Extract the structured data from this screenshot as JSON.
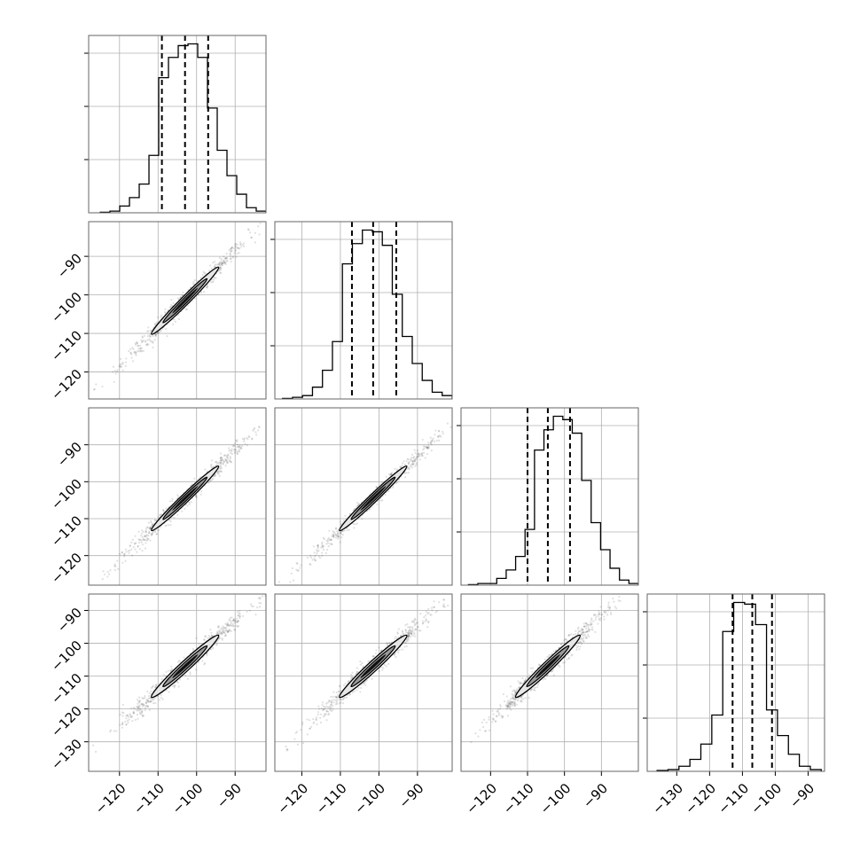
{
  "chart_data": {
    "type": "corner",
    "n_params": 4,
    "grid": true,
    "quantiles_dashed": true,
    "params": [
      {
        "hist_bins": {
          "lo": -125,
          "hi": -82,
          "heights": [
            0.3,
            1,
            4,
            9,
            17,
            34,
            80,
            92,
            99,
            100,
            92,
            62,
            37,
            22,
            11,
            3,
            1
          ]
        },
        "quantiles": [
          -109,
          -103,
          -97
        ],
        "range": [
          -128,
          -82
        ]
      },
      {
        "hist_bins": {
          "lo": -125,
          "hi": -81,
          "heights": [
            0.3,
            1,
            2,
            7,
            17,
            34,
            80,
            92,
            100,
            99,
            91,
            62,
            37,
            21,
            11,
            4,
            2
          ]
        },
        "quantiles": [
          -107,
          -101.5,
          -95.5
        ],
        "range": [
          -127,
          -81
        ],
        "ticks": [
          -120,
          -110,
          -100,
          -90
        ],
        "tick_labels": [
          "−120",
          "−110",
          "−100",
          "−90"
        ]
      },
      {
        "hist_bins": {
          "lo": -126,
          "hi": -80,
          "heights": [
            0.3,
            1,
            1,
            4,
            9,
            17,
            33,
            80,
            92,
            100,
            98,
            90,
            62,
            37,
            21,
            10,
            3,
            1
          ]
        },
        "quantiles": [
          -110,
          -104.5,
          -98.5
        ],
        "range": [
          -128,
          -80
        ],
        "ticks": [
          -120,
          -110,
          -100,
          -90
        ],
        "tick_labels": [
          "−120",
          "−110",
          "−100",
          "−90"
        ]
      },
      {
        "hist_bins": {
          "lo": -136,
          "hi": -86,
          "heights": [
            0.5,
            1,
            3,
            7,
            16,
            33,
            82,
            99,
            98,
            86,
            36,
            21,
            10,
            3,
            1
          ]
        },
        "quantiles": [
          -113,
          -107,
          -101
        ],
        "range": [
          -139,
          -85
        ],
        "ticks": [
          -130,
          -120,
          -110,
          -100,
          -90
        ],
        "tick_labels": [
          "−130",
          "−120",
          "−110",
          "−100",
          "−90"
        ]
      }
    ],
    "x_axis_ticks": [
      {
        "ticks": [
          -120,
          -110,
          -100,
          -90
        ],
        "labels": [
          "−120",
          "−110",
          "−100",
          "−90"
        ]
      },
      {
        "ticks": [
          -120,
          -110,
          -100,
          -90
        ],
        "labels": [
          "−120",
          "−110",
          "−100",
          "−90"
        ]
      },
      {
        "ticks": [
          -120,
          -110,
          -100,
          -90
        ],
        "labels": [
          "−120",
          "−110",
          "−100",
          "−90"
        ]
      },
      {
        "ticks": [
          -130,
          -120,
          -110,
          -100,
          -90
        ],
        "labels": [
          "−130",
          "−120",
          "−110",
          "−100",
          "−90"
        ]
      }
    ],
    "correlations": [
      {
        "row": 1,
        "col": 0,
        "center": [
          -103,
          -101.5
        ],
        "sd": [
          6,
          6
        ],
        "rho": 0.99
      },
      {
        "row": 2,
        "col": 0,
        "center": [
          -103,
          -104.5
        ],
        "sd": [
          6,
          6
        ],
        "rho": 0.99
      },
      {
        "row": 2,
        "col": 1,
        "center": [
          -101.5,
          -104.5
        ],
        "sd": [
          6,
          6
        ],
        "rho": 0.99
      },
      {
        "row": 3,
        "col": 0,
        "center": [
          -103,
          -107
        ],
        "sd": [
          6,
          6.5
        ],
        "rho": 0.985
      },
      {
        "row": 3,
        "col": 1,
        "center": [
          -101.5,
          -107
        ],
        "sd": [
          6,
          6.5
        ],
        "rho": 0.985
      },
      {
        "row": 3,
        "col": 2,
        "center": [
          -104.5,
          -107
        ],
        "sd": [
          6,
          6.5
        ],
        "rho": 0.985
      }
    ],
    "colors": {
      "line": "#000000",
      "grid": "#b0b0b0",
      "points": "#555555",
      "fill_light": "#e6e6e6",
      "fill_mid": "#9a9a9a",
      "fill_dark": "#111111"
    }
  }
}
